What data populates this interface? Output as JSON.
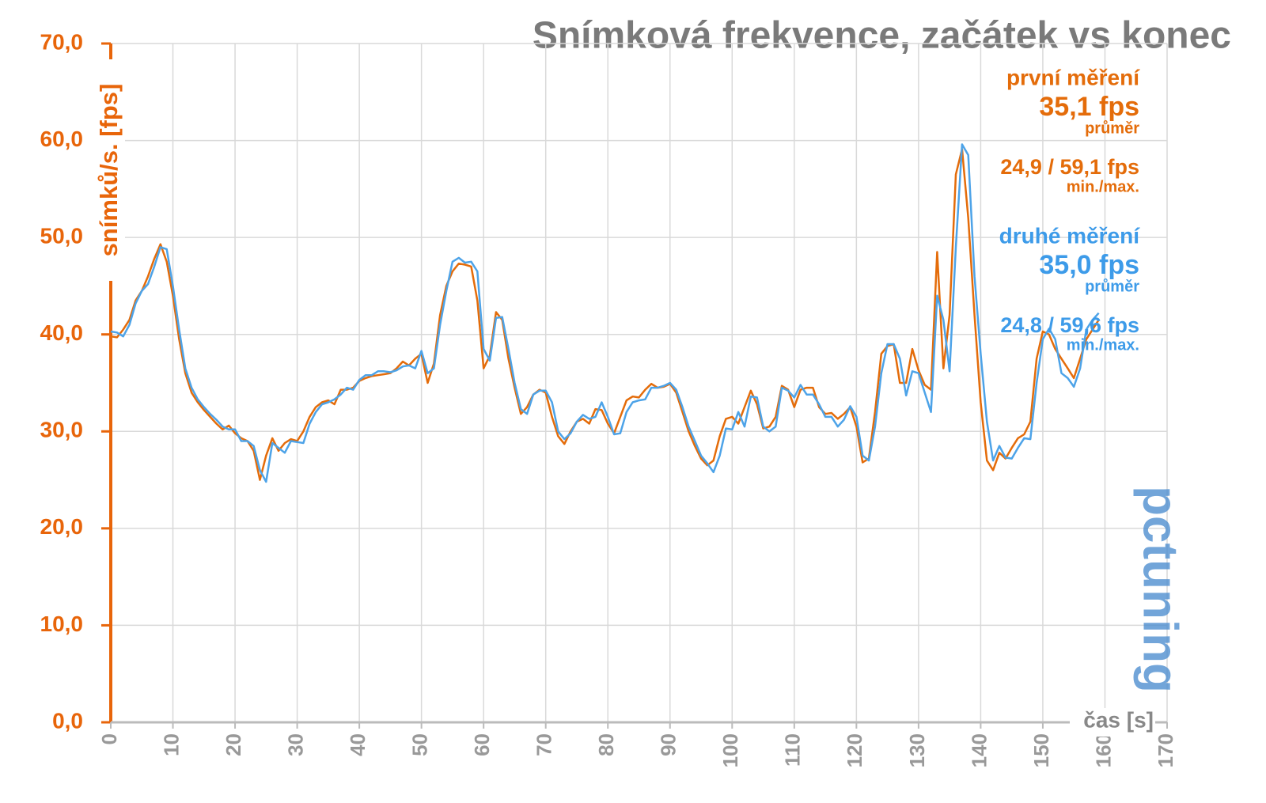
{
  "chart_data": {
    "type": "line",
    "title": "Snímková frekvence, začátek vs konec",
    "y_label": "snímků/s. [fps]",
    "x_label": "čas [s]",
    "logo": "pctuning",
    "annotations": [
      {
        "name": "první měření",
        "avg": "35,1 fps",
        "avg_label": "průměr",
        "minmax": "24,9 / 59,1 fps",
        "minmax_label": "min./max.",
        "color": "#e46c0a"
      },
      {
        "name": "druhé měření",
        "avg": "35,0 fps",
        "avg_label": "průměr",
        "minmax": "24,8 / 59,6 fps",
        "minmax_label": "min./max.",
        "color": "#3d9be9"
      }
    ],
    "x": [
      0,
      1,
      2,
      3,
      4,
      5,
      6,
      7,
      8,
      9,
      10,
      11,
      12,
      13,
      14,
      15,
      16,
      17,
      18,
      19,
      20,
      21,
      22,
      23,
      24,
      25,
      26,
      27,
      28,
      29,
      30,
      31,
      32,
      33,
      34,
      35,
      36,
      37,
      38,
      39,
      40,
      41,
      42,
      43,
      44,
      45,
      46,
      47,
      48,
      49,
      50,
      51,
      52,
      53,
      54,
      55,
      56,
      57,
      58,
      59,
      60,
      61,
      62,
      63,
      64,
      65,
      66,
      67,
      68,
      69,
      70,
      71,
      72,
      73,
      74,
      75,
      76,
      77,
      78,
      79,
      80,
      81,
      82,
      83,
      84,
      85,
      86,
      87,
      88,
      89,
      90,
      91,
      92,
      93,
      94,
      95,
      96,
      97,
      98,
      99,
      100,
      101,
      102,
      103,
      104,
      105,
      106,
      107,
      108,
      109,
      110,
      111,
      112,
      113,
      114,
      115,
      116,
      117,
      118,
      119,
      120,
      121,
      122,
      123,
      124,
      125,
      126,
      127,
      128,
      129,
      130,
      131,
      132,
      133,
      134,
      135,
      136,
      137,
      138,
      139,
      140,
      141,
      142,
      143,
      144,
      145,
      146,
      147,
      148,
      149,
      150,
      151,
      152,
      153,
      154,
      155,
      156,
      157,
      158,
      159
    ],
    "series": [
      {
        "name": "první měření",
        "color": "#e46c0a",
        "values": [
          39.8,
          39.7,
          40.5,
          41.5,
          43.5,
          44.5,
          46,
          47.8,
          49.3,
          47.5,
          44,
          39.5,
          36,
          34,
          33,
          32.2,
          31.5,
          30.8,
          30.2,
          30.6,
          29.8,
          29.3,
          29.0,
          28,
          25,
          27.5,
          29.3,
          28,
          28.8,
          29.2,
          29,
          30,
          31.5,
          32.5,
          33,
          33.2,
          32.8,
          34.3,
          34.3,
          34.5,
          35.2,
          35.5,
          35.7,
          35.8,
          35.9,
          36,
          36.5,
          37.2,
          36.8,
          37.5,
          38,
          35,
          37,
          42,
          45,
          46.5,
          47.3,
          47.2,
          47,
          43.5,
          36.5,
          37.8,
          42.3,
          41.5,
          37.5,
          34.5,
          31.8,
          32.5,
          33.8,
          34.3,
          34,
          31.5,
          29.5,
          28.7,
          30,
          31,
          31.3,
          30.8,
          32.3,
          32.2,
          30.8,
          29.8,
          31.5,
          33.2,
          33.6,
          33.5,
          34.3,
          34.9,
          34.5,
          34.6,
          34.9,
          34,
          32,
          30,
          28.5,
          27.2,
          26.5,
          27,
          29.5,
          31.3,
          31.5,
          30.8,
          32.5,
          34.2,
          32.8,
          30.3,
          30.5,
          31.5,
          34.7,
          34.3,
          32.5,
          34.3,
          34.5,
          34.5,
          32.5,
          31.8,
          31.9,
          31.3,
          31.8,
          32.5,
          30.5,
          26.8,
          27.2,
          32,
          38,
          38.8,
          39,
          35,
          35,
          38.5,
          36.3,
          34.8,
          34.3,
          48.5,
          36.5,
          42,
          56.5,
          59.1,
          52,
          42,
          33,
          27,
          26,
          27.8,
          27.2,
          28.3,
          29.3,
          29.7,
          31,
          37.5,
          40.3,
          40,
          38.5,
          37.5,
          36.5,
          35.5,
          37.5,
          39.5,
          40.5,
          41.5
        ]
      },
      {
        "name": "druhé měření",
        "color": "#4da3e8",
        "values": [
          40.3,
          40.2,
          39.8,
          41,
          43.2,
          44.5,
          45.2,
          47,
          49,
          48.8,
          45,
          40.5,
          36.5,
          34.5,
          33.3,
          32.5,
          31.8,
          31.2,
          30.5,
          30.2,
          30.2,
          29,
          29,
          28.5,
          26,
          24.8,
          28.8,
          28.3,
          27.8,
          29,
          28.9,
          28.8,
          30.8,
          32,
          32.8,
          33,
          33.3,
          33.8,
          34.5,
          34.3,
          35.3,
          35.8,
          35.8,
          36.2,
          36.2,
          36.1,
          36.3,
          36.7,
          36.8,
          36.5,
          38.3,
          36,
          36.5,
          41,
          44.5,
          47.5,
          47.9,
          47.4,
          47.5,
          46.5,
          38.5,
          37.3,
          41.7,
          41.8,
          38.5,
          35,
          32.3,
          31.8,
          33.8,
          34.2,
          34.2,
          33,
          30,
          29.2,
          29.8,
          31,
          31.7,
          31.3,
          31.5,
          33,
          31.5,
          29.7,
          29.8,
          32,
          33,
          33.2,
          33.3,
          34.5,
          34.5,
          34.7,
          35,
          34.3,
          32.5,
          30.5,
          29,
          27.5,
          26.7,
          25.8,
          27.5,
          30.3,
          30.2,
          32,
          30.5,
          33.6,
          33.5,
          30.5,
          30,
          30.5,
          34.5,
          34.2,
          33.5,
          34.8,
          33.8,
          33.8,
          32.8,
          31.5,
          31.5,
          30.5,
          31.2,
          32.6,
          31.5,
          27.5,
          27,
          30.5,
          36,
          39,
          39,
          37.5,
          33.7,
          36.2,
          36,
          34,
          32,
          44,
          41.5,
          36.2,
          49,
          59.6,
          58.5,
          46,
          38,
          31,
          27,
          28.5,
          27.3,
          27.2,
          28.3,
          29.3,
          29.2,
          35,
          39.5,
          40.6,
          39.5,
          36,
          35.5,
          34.6,
          36.5,
          40.5,
          41.5,
          42.2
        ]
      }
    ],
    "xlim": [
      0,
      170
    ],
    "xticks": [
      0,
      10,
      20,
      30,
      40,
      50,
      60,
      70,
      80,
      90,
      100,
      110,
      120,
      130,
      140,
      150,
      160,
      170
    ],
    "ylim": [
      0,
      70
    ],
    "yticks": [
      {
        "value": 0,
        "label": "0,0"
      },
      {
        "value": 10,
        "label": "10,0"
      },
      {
        "value": 20,
        "label": "20,0"
      },
      {
        "value": 30,
        "label": "30,0"
      },
      {
        "value": 40,
        "label": "40,0"
      },
      {
        "value": 50,
        "label": "50,0"
      },
      {
        "value": 60,
        "label": "60,0"
      },
      {
        "value": 70,
        "label": "70,0"
      }
    ],
    "grid": true,
    "axis_color": "#e8650a"
  }
}
